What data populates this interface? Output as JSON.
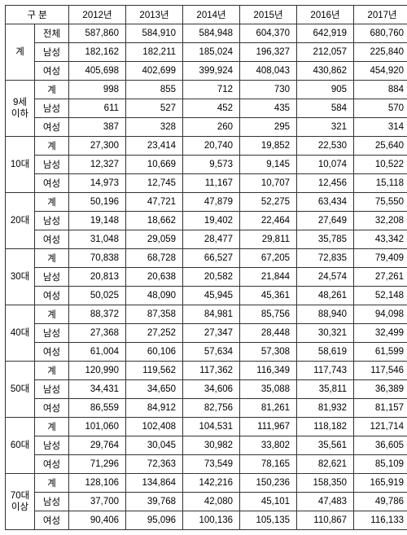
{
  "header": {
    "group_label": "구 분",
    "years": [
      "2012년",
      "2013년",
      "2014년",
      "2015년",
      "2016년",
      "2017년"
    ]
  },
  "sections": [
    {
      "group": "계",
      "rows": [
        {
          "label": "전체",
          "values": [
            "587,860",
            "584,910",
            "584,948",
            "604,370",
            "642,919",
            "680,760"
          ]
        },
        {
          "label": "남성",
          "values": [
            "182,162",
            "182,211",
            "185,024",
            "196,327",
            "212,057",
            "225,840"
          ]
        },
        {
          "label": "여성",
          "values": [
            "405,698",
            "402,699",
            "399,924",
            "408,043",
            "430,862",
            "454,920"
          ]
        }
      ]
    },
    {
      "group": "9세\n이하",
      "rows": [
        {
          "label": "계",
          "values": [
            "998",
            "855",
            "712",
            "730",
            "905",
            "884"
          ]
        },
        {
          "label": "남성",
          "values": [
            "611",
            "527",
            "452",
            "435",
            "584",
            "570"
          ]
        },
        {
          "label": "여성",
          "values": [
            "387",
            "328",
            "260",
            "295",
            "321",
            "314"
          ]
        }
      ]
    },
    {
      "group": "10대",
      "rows": [
        {
          "label": "계",
          "values": [
            "27,300",
            "23,414",
            "20,740",
            "19,852",
            "22,530",
            "25,640"
          ]
        },
        {
          "label": "남성",
          "values": [
            "12,327",
            "10,669",
            "9,573",
            "9,145",
            "10,074",
            "10,522"
          ]
        },
        {
          "label": "여성",
          "values": [
            "14,973",
            "12,745",
            "11,167",
            "10,707",
            "12,456",
            "15,118"
          ]
        }
      ]
    },
    {
      "group": "20대",
      "rows": [
        {
          "label": "계",
          "values": [
            "50,196",
            "47,721",
            "47,879",
            "52,275",
            "63,434",
            "75,550"
          ]
        },
        {
          "label": "남성",
          "values": [
            "19,148",
            "18,662",
            "19,402",
            "22,464",
            "27,649",
            "32,208"
          ]
        },
        {
          "label": "여성",
          "values": [
            "31,048",
            "29,059",
            "28,477",
            "29,811",
            "35,785",
            "43,342"
          ]
        }
      ]
    },
    {
      "group": "30대",
      "rows": [
        {
          "label": "계",
          "values": [
            "70,838",
            "68,728",
            "66,527",
            "67,205",
            "72,835",
            "79,409"
          ]
        },
        {
          "label": "남성",
          "values": [
            "20,813",
            "20,638",
            "20,582",
            "21,844",
            "24,574",
            "27,261"
          ]
        },
        {
          "label": "여성",
          "values": [
            "50,025",
            "48,090",
            "45,945",
            "45,361",
            "48,261",
            "52,148"
          ]
        }
      ]
    },
    {
      "group": "40대",
      "rows": [
        {
          "label": "계",
          "values": [
            "88,372",
            "87,358",
            "84,981",
            "85,756",
            "88,940",
            "94,098"
          ]
        },
        {
          "label": "남성",
          "values": [
            "27,368",
            "27,252",
            "27,347",
            "28,448",
            "30,321",
            "32,499"
          ]
        },
        {
          "label": "여성",
          "values": [
            "61,004",
            "60,106",
            "57,634",
            "57,308",
            "58,619",
            "61,599"
          ]
        }
      ]
    },
    {
      "group": "50대",
      "rows": [
        {
          "label": "계",
          "values": [
            "120,990",
            "119,562",
            "117,362",
            "116,349",
            "117,743",
            "117,546"
          ]
        },
        {
          "label": "남성",
          "values": [
            "34,431",
            "34,650",
            "34,606",
            "35,088",
            "35,811",
            "36,389"
          ]
        },
        {
          "label": "여성",
          "values": [
            "86,559",
            "84,912",
            "82,756",
            "81,261",
            "81,932",
            "81,157"
          ]
        }
      ]
    },
    {
      "group": "60대",
      "rows": [
        {
          "label": "계",
          "values": [
            "101,060",
            "102,408",
            "104,531",
            "111,967",
            "118,182",
            "121,714"
          ]
        },
        {
          "label": "남성",
          "values": [
            "29,764",
            "30,045",
            "30,982",
            "33,802",
            "35,561",
            "36,605"
          ]
        },
        {
          "label": "여성",
          "values": [
            "71,296",
            "72,363",
            "73,549",
            "78,165",
            "82,621",
            "85,109"
          ]
        }
      ]
    },
    {
      "group": "70대\n이상",
      "rows": [
        {
          "label": "계",
          "values": [
            "128,106",
            "134,864",
            "142,216",
            "150,236",
            "158,350",
            "165,919"
          ]
        },
        {
          "label": "남성",
          "values": [
            "37,700",
            "39,768",
            "42,080",
            "45,101",
            "47,483",
            "49,786"
          ]
        },
        {
          "label": "여성",
          "values": [
            "90,406",
            "95,096",
            "100,136",
            "105,135",
            "110,867",
            "116,133"
          ]
        }
      ]
    }
  ],
  "columns": {
    "group_width": "c0",
    "label_width": "c1",
    "year_width": "cy"
  }
}
